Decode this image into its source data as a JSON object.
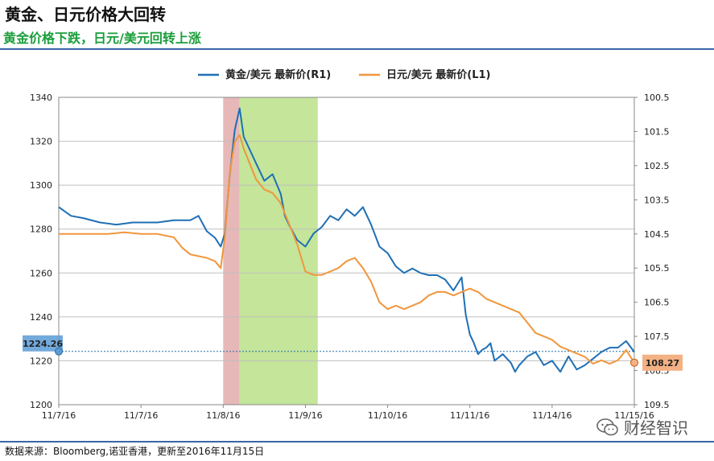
{
  "header": {
    "title": "黄金、日元价格大回转",
    "subtitle": "黄金价格下跌，日元/美元回转上涨"
  },
  "footer": {
    "source": "数据来源：Bloomberg,诺亚香港，更新至2016年11月15日"
  },
  "watermark": {
    "text": "财经智识"
  },
  "chart_data": {
    "type": "line",
    "legend_position": "top-center",
    "grid": true,
    "x_tick_labels": [
      "11/7/16",
      "11/7/16",
      "11/8/16",
      "11/9/16",
      "11/10/16",
      "11/11/16",
      "11/14/16",
      "11/15/16"
    ],
    "left_axis": {
      "ticks": [
        "1340",
        "1320",
        "1300",
        "1280",
        "1260",
        "1240",
        "1220",
        "1200"
      ],
      "ylim": [
        1200,
        1340
      ]
    },
    "right_axis": {
      "ticks": [
        "100.5",
        "101.5",
        "102.5",
        "103.5",
        "104.5",
        "105.5",
        "106.5",
        "107.5",
        "108.5",
        "109.5"
      ],
      "ylim": [
        109.5,
        100.5
      ],
      "inverted": true
    },
    "highlight_regions": [
      {
        "from": 2.0,
        "to": 2.2,
        "color": "#e6b8b7"
      },
      {
        "from": 2.2,
        "to": 3.15,
        "color": "#c4e59a"
      }
    ],
    "reference_line": {
      "value": 1224.26,
      "label": "1224.26"
    },
    "end_label": {
      "value": 108.27,
      "label": "108.27"
    },
    "series": [
      {
        "name": "黄金/美元 最新价(R1)",
        "axis": "left",
        "color": "#1f6fb5",
        "x": [
          0.0,
          0.15,
          0.3,
          0.5,
          0.7,
          0.9,
          1.0,
          1.2,
          1.4,
          1.6,
          1.7,
          1.8,
          1.9,
          1.97,
          2.02,
          2.08,
          2.14,
          2.2,
          2.25,
          2.3,
          2.4,
          2.5,
          2.6,
          2.7,
          2.75,
          2.8,
          2.9,
          3.0,
          3.1,
          3.2,
          3.3,
          3.4,
          3.5,
          3.6,
          3.7,
          3.8,
          3.9,
          4.0,
          4.1,
          4.2,
          4.3,
          4.4,
          4.5,
          4.6,
          4.7,
          4.8,
          4.9,
          4.95,
          5.0,
          5.05,
          5.1,
          5.15,
          5.2,
          5.25,
          5.3,
          5.4,
          5.5,
          5.55,
          5.6,
          5.7,
          5.8,
          5.9,
          6.0,
          6.1,
          6.2,
          6.3,
          6.4,
          6.5,
          6.6,
          6.7,
          6.8,
          6.9,
          7.0
        ],
        "y": [
          1290,
          1286,
          1285,
          1283,
          1282,
          1283,
          1283,
          1283,
          1284,
          1284,
          1286,
          1279,
          1276,
          1272,
          1278,
          1305,
          1325,
          1335,
          1322,
          1318,
          1310,
          1302,
          1305,
          1296,
          1286,
          1282,
          1275,
          1272,
          1278,
          1281,
          1286,
          1284,
          1289,
          1286,
          1290,
          1282,
          1272,
          1269,
          1263,
          1260,
          1262,
          1260,
          1259,
          1259,
          1257,
          1252,
          1258,
          1241,
          1232,
          1228,
          1223,
          1225,
          1226,
          1228,
          1220,
          1223,
          1219,
          1215,
          1218,
          1222,
          1224,
          1218,
          1220,
          1215,
          1222,
          1216,
          1218,
          1221,
          1224,
          1226,
          1226,
          1229,
          1224
        ]
      },
      {
        "name": "日元/美元 最新价(L1)",
        "axis": "right",
        "color": "#f0963c",
        "x": [
          0.0,
          0.2,
          0.4,
          0.6,
          0.8,
          1.0,
          1.2,
          1.4,
          1.5,
          1.6,
          1.7,
          1.8,
          1.9,
          1.97,
          2.02,
          2.08,
          2.14,
          2.2,
          2.25,
          2.3,
          2.4,
          2.5,
          2.6,
          2.7,
          2.8,
          2.9,
          3.0,
          3.1,
          3.2,
          3.3,
          3.4,
          3.5,
          3.6,
          3.7,
          3.8,
          3.9,
          4.0,
          4.1,
          4.2,
          4.3,
          4.4,
          4.5,
          4.6,
          4.7,
          4.8,
          4.9,
          5.0,
          5.1,
          5.2,
          5.3,
          5.4,
          5.5,
          5.6,
          5.7,
          5.8,
          5.9,
          6.0,
          6.1,
          6.2,
          6.3,
          6.4,
          6.5,
          6.6,
          6.7,
          6.8,
          6.9,
          7.0
        ],
        "y": [
          104.5,
          104.5,
          104.5,
          104.5,
          104.45,
          104.5,
          104.5,
          104.6,
          104.9,
          105.1,
          105.15,
          105.2,
          105.3,
          105.5,
          104.6,
          102.7,
          101.8,
          101.6,
          102.0,
          102.3,
          102.9,
          103.2,
          103.3,
          103.6,
          104.2,
          104.8,
          105.6,
          105.7,
          105.7,
          105.6,
          105.5,
          105.3,
          105.2,
          105.5,
          105.9,
          106.5,
          106.7,
          106.6,
          106.7,
          106.6,
          106.5,
          106.3,
          106.2,
          106.2,
          106.3,
          106.2,
          106.1,
          106.2,
          106.4,
          106.5,
          106.6,
          106.7,
          106.8,
          107.1,
          107.4,
          107.5,
          107.6,
          107.8,
          107.9,
          108.0,
          108.1,
          108.3,
          108.2,
          108.3,
          108.2,
          107.9,
          108.27
        ]
      }
    ]
  }
}
